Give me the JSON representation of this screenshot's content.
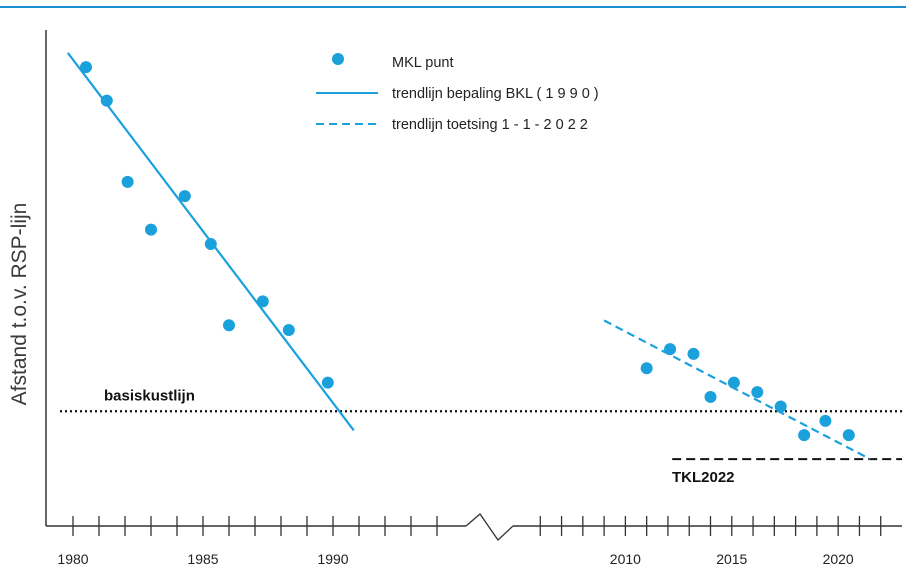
{
  "chart_data": {
    "type": "scatter",
    "title": "",
    "xlabel": "",
    "ylabel": "Afstand t.o.v. RSP-lijn",
    "y_tick_labels": false,
    "x_axis_broken": true,
    "x_segments": [
      {
        "xlim": [
          1979,
          1995
        ],
        "ticks": [
          1980,
          1985,
          1990
        ]
      },
      {
        "xlim": [
          2005,
          2023
        ],
        "ticks": [
          2010,
          2015,
          2020
        ]
      }
    ],
    "ylim": [
      0,
      100
    ],
    "colors": {
      "points": "#1aa1dc",
      "trend": "#1aa1dc",
      "reference": "#111111",
      "frame_line": "#1a8fcf"
    },
    "legend": {
      "placement": "top-center",
      "entries": [
        {
          "label": "MKL punt",
          "style": "marker"
        },
        {
          "label": "trendlijn bepaling BKL ( 1 9 9 0 )",
          "style": "solid"
        },
        {
          "label": "trendlijn toetsing 1 - 1 - 2 0 2 2",
          "style": "dashed"
        }
      ]
    },
    "series": [
      {
        "name": "MKL punt",
        "kind": "points",
        "points": [
          {
            "x": 1980.5,
            "y": 96
          },
          {
            "x": 1981.3,
            "y": 89
          },
          {
            "x": 1982.1,
            "y": 72
          },
          {
            "x": 1983.0,
            "y": 62
          },
          {
            "x": 1984.3,
            "y": 69
          },
          {
            "x": 1985.3,
            "y": 59
          },
          {
            "x": 1986.0,
            "y": 42
          },
          {
            "x": 1987.3,
            "y": 47
          },
          {
            "x": 1988.3,
            "y": 41
          },
          {
            "x": 1989.8,
            "y": 30
          },
          {
            "x": 2011.0,
            "y": 33
          },
          {
            "x": 2012.1,
            "y": 37
          },
          {
            "x": 2013.2,
            "y": 36
          },
          {
            "x": 2014.0,
            "y": 27
          },
          {
            "x": 2015.1,
            "y": 30
          },
          {
            "x": 2016.2,
            "y": 28
          },
          {
            "x": 2017.3,
            "y": 25
          },
          {
            "x": 2018.4,
            "y": 19
          },
          {
            "x": 2019.4,
            "y": 22
          },
          {
            "x": 2020.5,
            "y": 19
          }
        ]
      },
      {
        "name": "trendlijn bepaling BKL ( 1 9 9 0 )",
        "kind": "line",
        "dash": "solid",
        "points": [
          {
            "x": 1979.8,
            "y": 99
          },
          {
            "x": 1990.8,
            "y": 20
          }
        ]
      },
      {
        "name": "trendlijn toetsing 1 - 1 - 2 0 2 2",
        "kind": "line",
        "dash": "dashed",
        "points": [
          {
            "x": 2009.0,
            "y": 43
          },
          {
            "x": 2021.5,
            "y": 14
          }
        ]
      }
    ],
    "reference_lines": [
      {
        "label": "basiskustlijn",
        "y": 24,
        "style": "dotted",
        "x_from": 1979.5,
        "x_to": 2023.0
      },
      {
        "label": "TKL2022",
        "y": 14,
        "style": "dashed",
        "x_from": 2012.2,
        "x_to": 2023.0
      }
    ]
  }
}
